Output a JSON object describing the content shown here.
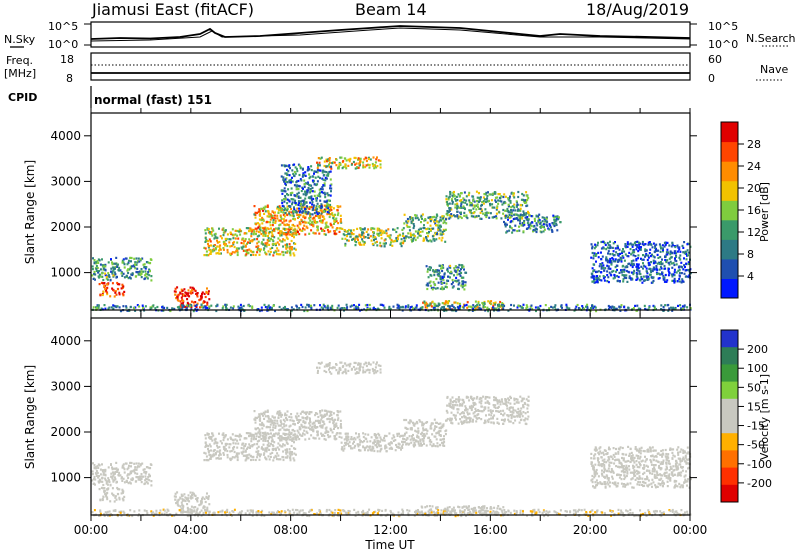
{
  "header": {
    "station": "Jiamusi East (fitACF)",
    "beam": "Beam 14",
    "date": "18/Aug/2019"
  },
  "noise": {
    "left_label": "N.Sky",
    "right_label": "N.Search",
    "tick_top": "10^5",
    "tick_bottom": "10^0",
    "right_tick_top": "10^5",
    "right_tick_bottom": "10^0"
  },
  "freq": {
    "label_line1": "Freq.",
    "label_line2": "[MHz]",
    "tick_top": "18",
    "tick_bottom": "8",
    "nave_label": "Nave",
    "nave_tick_top": "60",
    "nave_tick_bottom": "0"
  },
  "cpid": {
    "label": "CPID",
    "text": "normal (fast) 151"
  },
  "colors": {
    "power_scale": [
      "#0018ff",
      "#1f4fb0",
      "#2d7a85",
      "#3a9a6a",
      "#7fcc3e",
      "#f2c200",
      "#ff8c00",
      "#ff4500",
      "#e00000"
    ],
    "velocity_scale": [
      "#2233cc",
      "#2e7d57",
      "#3a9a3a",
      "#7fd13b",
      "#c8c8c0",
      "#c8c8c0",
      "#ffb000",
      "#ff7000",
      "#ff3000",
      "#e00000"
    ]
  },
  "chart_data": [
    {
      "type": "heatmap",
      "name": "power",
      "ylabel": "Slant Range [km]",
      "xlabel": "",
      "y_ticks": [
        "1000",
        "2000",
        "3000",
        "4000"
      ],
      "x_ticks": [],
      "ylim": [
        180,
        4500
      ],
      "xlim": [
        0,
        24
      ],
      "colorbar_label": "Power [dB]",
      "colorbar_ticks": [
        "4",
        "8",
        "12",
        "16",
        "20",
        "24",
        "28"
      ],
      "colorbar_range": [
        0,
        30
      ],
      "features": [
        {
          "t": [
            0.0,
            2.4
          ],
          "r": [
            850,
            1350
          ],
          "value": 10
        },
        {
          "t": [
            0.3,
            1.3
          ],
          "r": [
            500,
            800
          ],
          "value": 26
        },
        {
          "t": [
            3.3,
            4.7
          ],
          "r": [
            250,
            700
          ],
          "value": 27
        },
        {
          "t": [
            4.5,
            8.2
          ],
          "r": [
            1400,
            2000
          ],
          "value": 17
        },
        {
          "t": [
            6.5,
            10.0
          ],
          "r": [
            1850,
            2500
          ],
          "value": 20
        },
        {
          "t": [
            9.0,
            11.6
          ],
          "r": [
            3300,
            3550
          ],
          "value": 18
        },
        {
          "t": [
            7.6,
            9.6
          ],
          "r": [
            2300,
            3400
          ],
          "value": 8
        },
        {
          "t": [
            10.0,
            12.5
          ],
          "r": [
            1600,
            2000
          ],
          "value": 15
        },
        {
          "t": [
            12.5,
            14.2
          ],
          "r": [
            1700,
            2300
          ],
          "value": 13
        },
        {
          "t": [
            14.2,
            17.5
          ],
          "r": [
            2200,
            2800
          ],
          "value": 12
        },
        {
          "t": [
            16.5,
            18.8
          ],
          "r": [
            1900,
            2300
          ],
          "value": 9
        },
        {
          "t": [
            20.0,
            24.0
          ],
          "r": [
            800,
            1700
          ],
          "value": 6
        },
        {
          "t": [
            13.4,
            15.0
          ],
          "r": [
            650,
            1200
          ],
          "value": 10
        },
        {
          "t": [
            13.2,
            16.5
          ],
          "r": [
            200,
            400
          ],
          "value": 18
        },
        {
          "t": [
            0.0,
            24.0
          ],
          "r": [
            180,
            320
          ],
          "value": 8
        }
      ]
    },
    {
      "type": "heatmap",
      "name": "velocity",
      "ylabel": "Slant Range [km]",
      "xlabel": "Time UT",
      "y_ticks": [
        "1000",
        "2000",
        "3000",
        "4000"
      ],
      "x_ticks": [
        "00:00",
        "04:00",
        "08:00",
        "12:00",
        "16:00",
        "20:00",
        "00:00"
      ],
      "ylim": [
        180,
        4500
      ],
      "xlim": [
        0,
        24
      ],
      "colorbar_label": "Velocity [m s-1]",
      "colorbar_ticks": [
        "200",
        "100",
        "50",
        "15",
        "-15",
        "-50",
        "-100",
        "-200"
      ],
      "colorbar_range": [
        -250,
        250
      ],
      "features": [
        {
          "t": [
            0.0,
            2.4
          ],
          "r": [
            850,
            1350
          ],
          "value": -10
        },
        {
          "t": [
            0.3,
            1.3
          ],
          "r": [
            500,
            800
          ],
          "value": 0
        },
        {
          "t": [
            3.3,
            4.7
          ],
          "r": [
            250,
            700
          ],
          "value": -5
        },
        {
          "t": [
            4.5,
            8.2
          ],
          "r": [
            1400,
            2000
          ],
          "value": 0
        },
        {
          "t": [
            6.5,
            10.0
          ],
          "r": [
            1850,
            2500
          ],
          "value": 5
        },
        {
          "t": [
            9.0,
            11.6
          ],
          "r": [
            3300,
            3550
          ],
          "value": 0
        },
        {
          "t": [
            10.0,
            12.5
          ],
          "r": [
            1600,
            2000
          ],
          "value": -5
        },
        {
          "t": [
            12.5,
            14.2
          ],
          "r": [
            1700,
            2300
          ],
          "value": 0
        },
        {
          "t": [
            14.2,
            17.5
          ],
          "r": [
            2200,
            2800
          ],
          "value": 0
        },
        {
          "t": [
            20.0,
            24.0
          ],
          "r": [
            800,
            1700
          ],
          "value": 5
        },
        {
          "t": [
            13.2,
            16.5
          ],
          "r": [
            200,
            400
          ],
          "value": 35
        },
        {
          "t": [
            0.0,
            24.0
          ],
          "r": [
            180,
            320
          ],
          "value": -40
        }
      ]
    }
  ]
}
